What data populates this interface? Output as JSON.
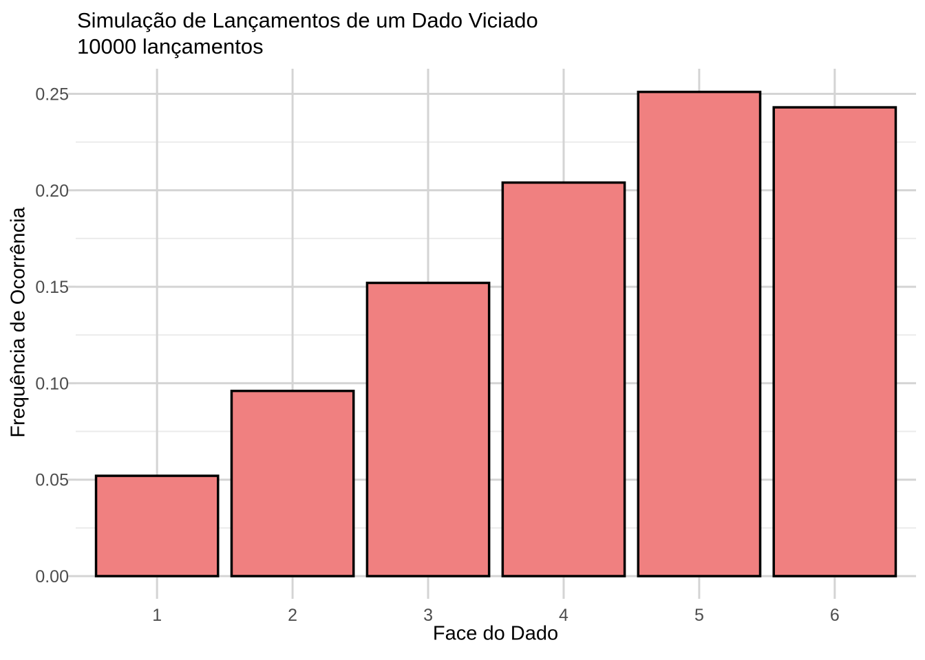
{
  "chart_data": {
    "type": "bar",
    "title": "Simulação de Lançamentos de um Dado Viciado",
    "subtitle": "10000 lançamentos",
    "xlabel": "Face do Dado",
    "ylabel": "Frequência de Ocorrência",
    "categories": [
      "1",
      "2",
      "3",
      "4",
      "5",
      "6"
    ],
    "values": [
      0.052,
      0.096,
      0.152,
      0.204,
      0.251,
      0.243
    ],
    "y_ticks": [
      0,
      0.05,
      0.1,
      0.15,
      0.2,
      0.25
    ],
    "y_tick_labels": [
      "0.00",
      "0.05",
      "0.10",
      "0.15",
      "0.20",
      "0.25"
    ],
    "y_minor_ticks": [
      0.025,
      0.075,
      0.125,
      0.175,
      0.225
    ],
    "ylim": [
      0,
      0.263
    ],
    "grid": "major-and-minor-horizontal, major-vertical",
    "legend": "none",
    "colors": {
      "bar_fill": "#F08080",
      "bar_stroke": "#000000",
      "grid_major": "#D4D4D4",
      "grid_minor": "#EBEBEB",
      "tick_mark": "#D4D4D4",
      "tick_label": "#4D4D4D",
      "text": "#000000",
      "background": "#FFFFFF"
    }
  }
}
